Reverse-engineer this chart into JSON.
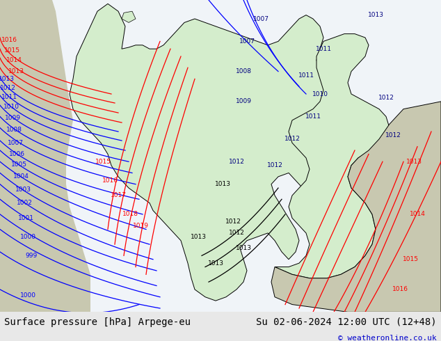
{
  "title_left": "Surface pressure [hPa] Arpege-eu",
  "title_right": "Su 02-06-2024 12:00 UTC (12+48)",
  "copyright": "© weatheronline.co.uk",
  "bg_color": "#e8e8e8",
  "map_bg": "#d4edcc",
  "sea_color": "#ffffff",
  "land_color": "#d4edcc",
  "border_color": "#000000",
  "blue_isobar_color": "#0000ff",
  "red_isobar_color": "#ff0000",
  "black_isobar_color": "#000000",
  "footer_bg": "#ffffff",
  "footer_text_color": "#000000",
  "copyright_color": "#0000cc",
  "figsize": [
    6.34,
    4.9
  ],
  "dpi": 100
}
